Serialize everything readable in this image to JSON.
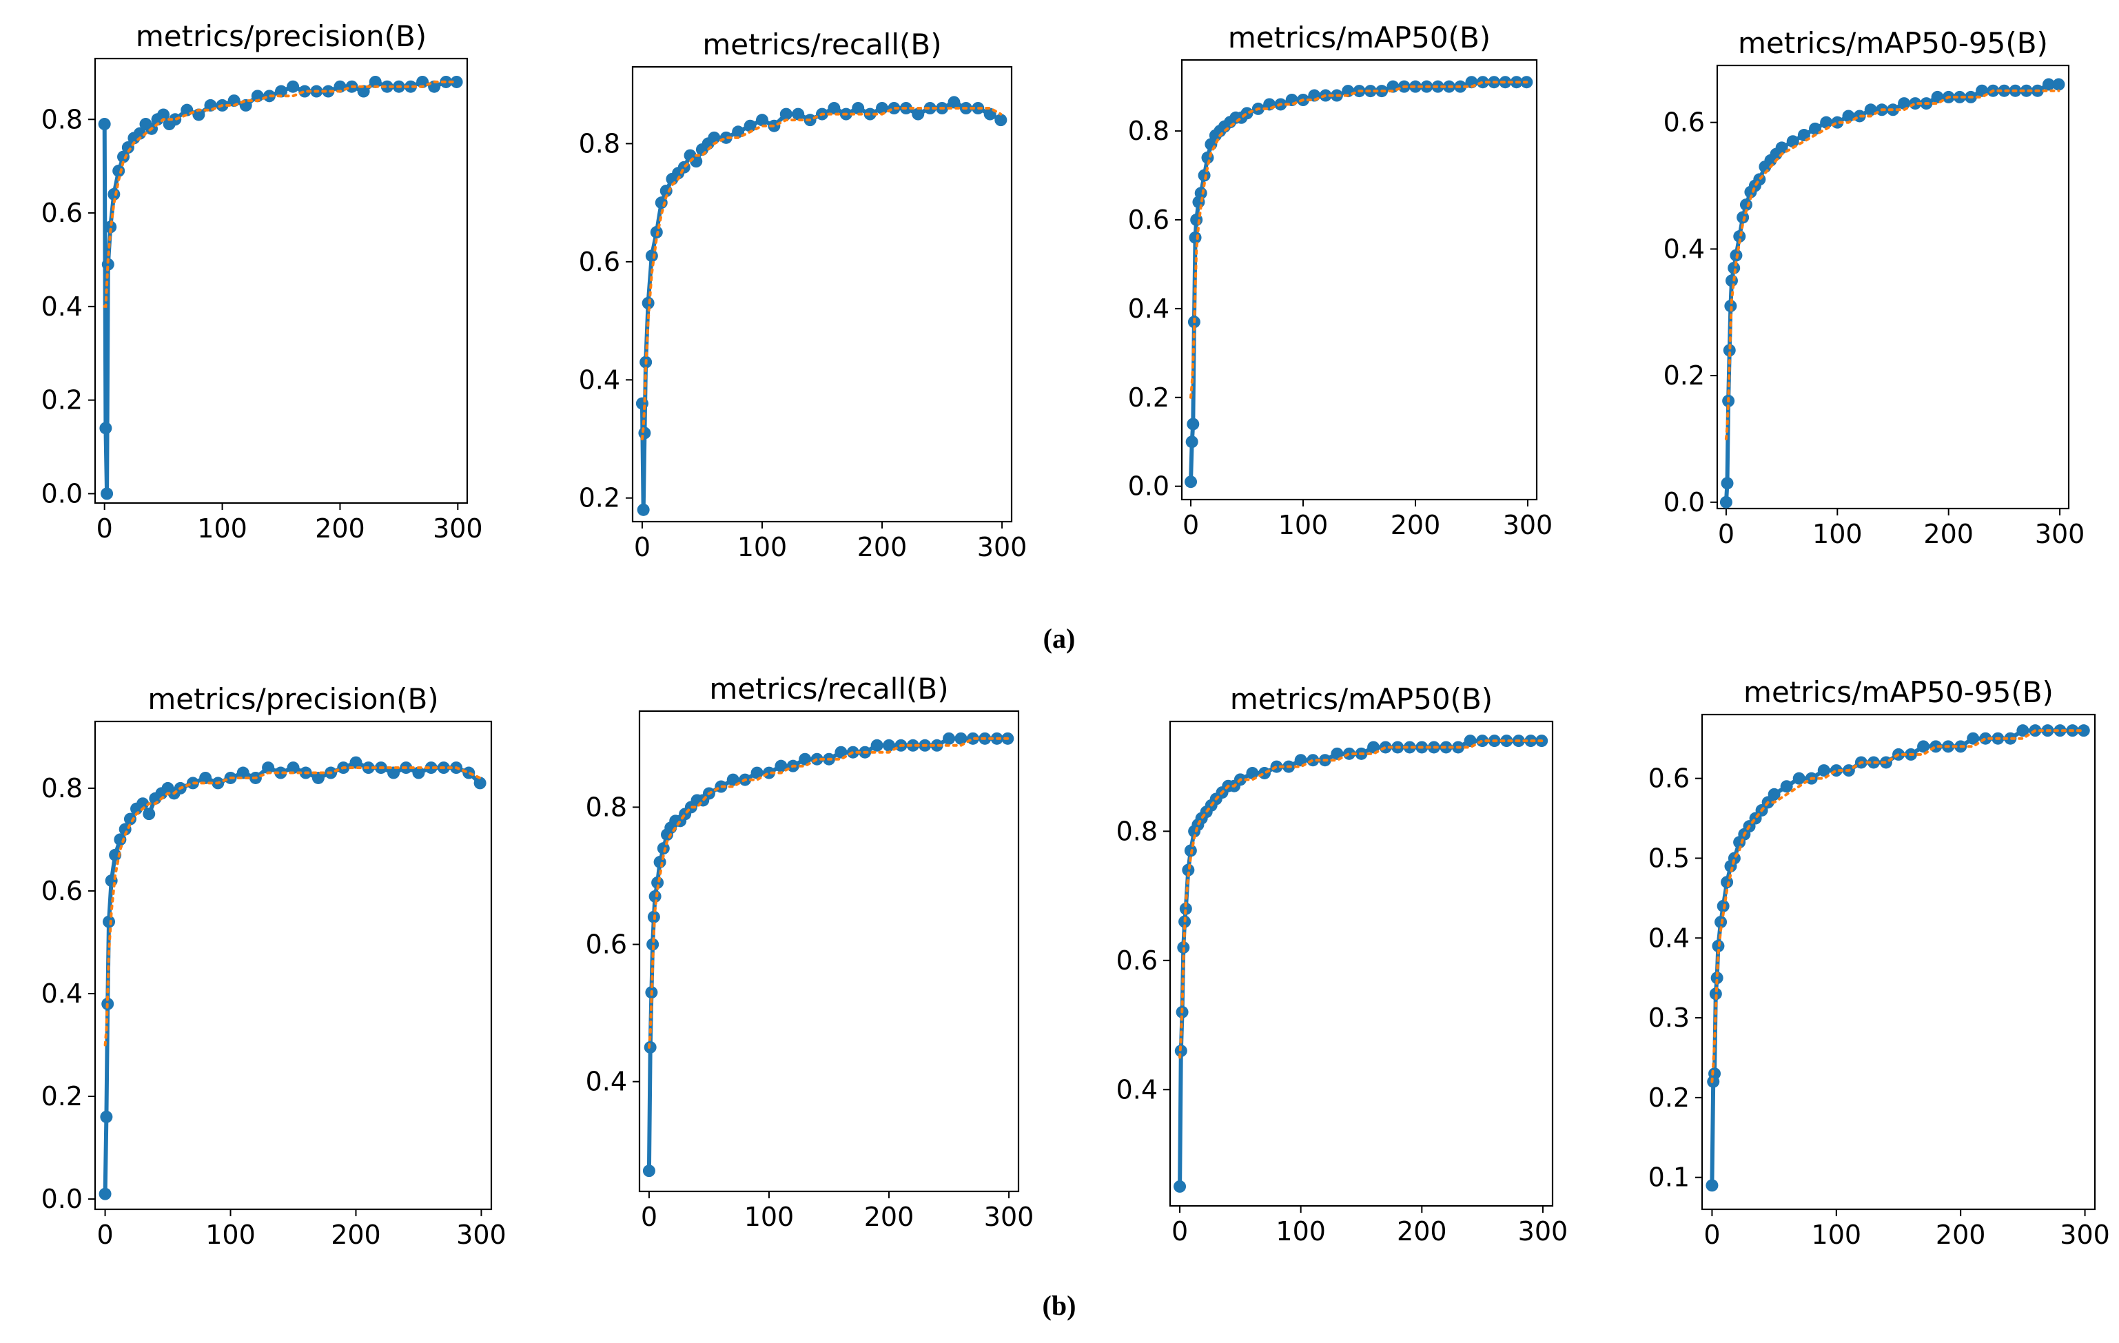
{
  "colors": {
    "series": "#1f77b4",
    "smooth": "#ff7f0e",
    "axis": "#000000"
  },
  "panel_labels": [
    "(a)",
    "(b)"
  ],
  "chart_data": [
    {
      "type": "line",
      "row": 0,
      "title": "metrics/precision(B)",
      "xlim": [
        -8,
        308
      ],
      "ylim": [
        -0.02,
        0.93
      ],
      "xticks": [
        0,
        100,
        200,
        300
      ],
      "xtick_labels": [
        "0",
        "100",
        "200",
        "300"
      ],
      "yticks": [
        0,
        0.2,
        0.4,
        0.6,
        0.8
      ],
      "ytick_labels": [
        "0.0",
        "0.2",
        "0.4",
        "0.6",
        "0.8"
      ],
      "x": [
        0,
        1,
        2,
        3,
        5,
        8,
        12,
        16,
        20,
        25,
        30,
        35,
        40,
        45,
        50,
        55,
        60,
        70,
        80,
        90,
        100,
        110,
        120,
        130,
        140,
        150,
        160,
        170,
        180,
        190,
        200,
        210,
        220,
        230,
        240,
        250,
        260,
        270,
        280,
        290,
        299
      ],
      "y": [
        0.79,
        0.14,
        0.0,
        0.49,
        0.57,
        0.64,
        0.69,
        0.72,
        0.74,
        0.76,
        0.77,
        0.79,
        0.78,
        0.8,
        0.81,
        0.79,
        0.8,
        0.82,
        0.81,
        0.83,
        0.83,
        0.84,
        0.83,
        0.85,
        0.85,
        0.86,
        0.87,
        0.86,
        0.86,
        0.86,
        0.87,
        0.87,
        0.86,
        0.88,
        0.87,
        0.87,
        0.87,
        0.88,
        0.87,
        0.88,
        0.88
      ],
      "smooth": [
        0.4,
        0.4,
        0.45,
        0.5,
        0.56,
        0.62,
        0.67,
        0.71,
        0.73,
        0.75,
        0.76,
        0.77,
        0.78,
        0.79,
        0.8,
        0.8,
        0.8,
        0.81,
        0.82,
        0.82,
        0.83,
        0.83,
        0.84,
        0.84,
        0.85,
        0.85,
        0.85,
        0.86,
        0.86,
        0.86,
        0.86,
        0.87,
        0.87,
        0.87,
        0.87,
        0.87,
        0.87,
        0.87,
        0.88,
        0.88,
        0.88
      ]
    },
    {
      "type": "line",
      "row": 0,
      "title": "metrics/recall(B)",
      "xlim": [
        -8,
        308
      ],
      "ylim": [
        0.16,
        0.93
      ],
      "xticks": [
        0,
        100,
        200,
        300
      ],
      "xtick_labels": [
        "0",
        "100",
        "200",
        "300"
      ],
      "yticks": [
        0.2,
        0.4,
        0.6,
        0.8
      ],
      "ytick_labels": [
        "0.2",
        "0.4",
        "0.6",
        "0.8"
      ],
      "x": [
        0,
        1,
        2,
        3,
        5,
        8,
        12,
        16,
        20,
        25,
        30,
        35,
        40,
        45,
        50,
        55,
        60,
        70,
        80,
        90,
        100,
        110,
        120,
        130,
        140,
        150,
        160,
        170,
        180,
        190,
        200,
        210,
        220,
        230,
        240,
        250,
        260,
        270,
        280,
        290,
        299
      ],
      "y": [
        0.36,
        0.18,
        0.31,
        0.43,
        0.53,
        0.61,
        0.65,
        0.7,
        0.72,
        0.74,
        0.75,
        0.76,
        0.78,
        0.77,
        0.79,
        0.8,
        0.81,
        0.81,
        0.82,
        0.83,
        0.84,
        0.83,
        0.85,
        0.85,
        0.84,
        0.85,
        0.86,
        0.85,
        0.86,
        0.85,
        0.86,
        0.86,
        0.86,
        0.85,
        0.86,
        0.86,
        0.87,
        0.86,
        0.86,
        0.85,
        0.84
      ],
      "smooth": [
        0.3,
        0.32,
        0.36,
        0.42,
        0.5,
        0.58,
        0.64,
        0.68,
        0.71,
        0.73,
        0.74,
        0.76,
        0.77,
        0.78,
        0.78,
        0.79,
        0.8,
        0.81,
        0.81,
        0.82,
        0.83,
        0.83,
        0.84,
        0.84,
        0.84,
        0.85,
        0.85,
        0.85,
        0.85,
        0.85,
        0.85,
        0.86,
        0.86,
        0.86,
        0.86,
        0.86,
        0.86,
        0.86,
        0.86,
        0.86,
        0.85
      ]
    },
    {
      "type": "line",
      "row": 0,
      "title": "metrics/mAP50(B)",
      "xlim": [
        -8,
        308
      ],
      "ylim": [
        -0.03,
        0.96
      ],
      "xticks": [
        0,
        100,
        200,
        300
      ],
      "xtick_labels": [
        "0",
        "100",
        "200",
        "300"
      ],
      "yticks": [
        0,
        0.2,
        0.4,
        0.6,
        0.8
      ],
      "ytick_labels": [
        "0.0",
        "0.2",
        "0.4",
        "0.6",
        "0.8"
      ],
      "x": [
        0,
        1,
        2,
        3,
        4,
        5,
        7,
        9,
        12,
        15,
        18,
        22,
        26,
        30,
        35,
        40,
        45,
        50,
        60,
        70,
        80,
        90,
        100,
        110,
        120,
        130,
        140,
        150,
        160,
        170,
        180,
        190,
        200,
        210,
        220,
        230,
        240,
        250,
        260,
        270,
        280,
        290,
        299
      ],
      "y": [
        0.01,
        0.1,
        0.14,
        0.37,
        0.56,
        0.6,
        0.64,
        0.66,
        0.7,
        0.74,
        0.77,
        0.79,
        0.8,
        0.81,
        0.82,
        0.83,
        0.83,
        0.84,
        0.85,
        0.86,
        0.86,
        0.87,
        0.87,
        0.88,
        0.88,
        0.88,
        0.89,
        0.89,
        0.89,
        0.89,
        0.9,
        0.9,
        0.9,
        0.9,
        0.9,
        0.9,
        0.9,
        0.91,
        0.91,
        0.91,
        0.91,
        0.91,
        0.91
      ],
      "smooth": [
        0.2,
        0.23,
        0.28,
        0.35,
        0.45,
        0.53,
        0.59,
        0.63,
        0.68,
        0.72,
        0.75,
        0.77,
        0.79,
        0.8,
        0.81,
        0.82,
        0.83,
        0.84,
        0.85,
        0.85,
        0.86,
        0.86,
        0.87,
        0.87,
        0.88,
        0.88,
        0.88,
        0.89,
        0.89,
        0.89,
        0.89,
        0.9,
        0.9,
        0.9,
        0.9,
        0.9,
        0.9,
        0.9,
        0.91,
        0.91,
        0.91,
        0.91,
        0.91
      ]
    },
    {
      "type": "line",
      "row": 0,
      "title": "metrics/mAP50-95(B)",
      "xlim": [
        -8,
        308
      ],
      "ylim": [
        -0.01,
        0.69
      ],
      "xticks": [
        0,
        100,
        200,
        300
      ],
      "xtick_labels": [
        "0",
        "100",
        "200",
        "300"
      ],
      "yticks": [
        0,
        0.2,
        0.4,
        0.6
      ],
      "ytick_labels": [
        "0.0",
        "0.2",
        "0.4",
        "0.6"
      ],
      "x": [
        0,
        1,
        2,
        3,
        4,
        5,
        7,
        9,
        12,
        15,
        18,
        22,
        26,
        30,
        35,
        40,
        45,
        50,
        60,
        70,
        80,
        90,
        100,
        110,
        120,
        130,
        140,
        150,
        160,
        170,
        180,
        190,
        200,
        210,
        220,
        230,
        240,
        250,
        260,
        270,
        280,
        290,
        299
      ],
      "y": [
        0.0,
        0.03,
        0.16,
        0.24,
        0.31,
        0.35,
        0.37,
        0.39,
        0.42,
        0.45,
        0.47,
        0.49,
        0.5,
        0.51,
        0.53,
        0.54,
        0.55,
        0.56,
        0.57,
        0.58,
        0.59,
        0.6,
        0.6,
        0.61,
        0.61,
        0.62,
        0.62,
        0.62,
        0.63,
        0.63,
        0.63,
        0.64,
        0.64,
        0.64,
        0.64,
        0.65,
        0.65,
        0.65,
        0.65,
        0.65,
        0.65,
        0.66,
        0.66
      ],
      "smooth": [
        0.1,
        0.12,
        0.16,
        0.22,
        0.28,
        0.32,
        0.35,
        0.38,
        0.41,
        0.44,
        0.46,
        0.48,
        0.5,
        0.51,
        0.52,
        0.53,
        0.54,
        0.55,
        0.56,
        0.57,
        0.58,
        0.59,
        0.6,
        0.6,
        0.61,
        0.61,
        0.62,
        0.62,
        0.62,
        0.63,
        0.63,
        0.63,
        0.64,
        0.64,
        0.64,
        0.64,
        0.65,
        0.65,
        0.65,
        0.65,
        0.65,
        0.65,
        0.65
      ]
    },
    {
      "type": "line",
      "row": 1,
      "title": "metrics/precision(B)",
      "xlim": [
        -8,
        308
      ],
      "ylim": [
        -0.02,
        0.93
      ],
      "xticks": [
        0,
        100,
        200,
        300
      ],
      "xtick_labels": [
        "0",
        "100",
        "200",
        "300"
      ],
      "yticks": [
        0,
        0.2,
        0.4,
        0.6,
        0.8
      ],
      "ytick_labels": [
        "0.0",
        "0.2",
        "0.4",
        "0.6",
        "0.8"
      ],
      "x": [
        0,
        1,
        2,
        3,
        5,
        8,
        12,
        16,
        20,
        25,
        30,
        35,
        40,
        45,
        50,
        55,
        60,
        70,
        80,
        90,
        100,
        110,
        120,
        130,
        140,
        150,
        160,
        170,
        180,
        190,
        200,
        210,
        220,
        230,
        240,
        250,
        260,
        270,
        280,
        290,
        299
      ],
      "y": [
        0.01,
        0.16,
        0.38,
        0.54,
        0.62,
        0.67,
        0.7,
        0.72,
        0.74,
        0.76,
        0.77,
        0.75,
        0.78,
        0.79,
        0.8,
        0.79,
        0.8,
        0.81,
        0.82,
        0.81,
        0.82,
        0.83,
        0.82,
        0.84,
        0.83,
        0.84,
        0.83,
        0.82,
        0.83,
        0.84,
        0.85,
        0.84,
        0.84,
        0.83,
        0.84,
        0.83,
        0.84,
        0.84,
        0.84,
        0.83,
        0.81
      ],
      "smooth": [
        0.3,
        0.33,
        0.4,
        0.48,
        0.56,
        0.63,
        0.68,
        0.71,
        0.73,
        0.75,
        0.76,
        0.77,
        0.77,
        0.78,
        0.79,
        0.79,
        0.8,
        0.81,
        0.81,
        0.81,
        0.82,
        0.82,
        0.82,
        0.83,
        0.83,
        0.83,
        0.83,
        0.83,
        0.83,
        0.84,
        0.84,
        0.84,
        0.84,
        0.84,
        0.84,
        0.84,
        0.84,
        0.84,
        0.84,
        0.83,
        0.82
      ]
    },
    {
      "type": "line",
      "row": 1,
      "title": "metrics/recall(B)",
      "xlim": [
        -8,
        308
      ],
      "ylim": [
        0.24,
        0.94
      ],
      "xticks": [
        0,
        100,
        200,
        300
      ],
      "xtick_labels": [
        "0",
        "100",
        "200",
        "300"
      ],
      "yticks": [
        0.4,
        0.6,
        0.8
      ],
      "ytick_labels": [
        "0.4",
        "0.6",
        "0.8"
      ],
      "x": [
        0,
        1,
        2,
        3,
        4,
        5,
        7,
        9,
        12,
        15,
        18,
        22,
        26,
        30,
        35,
        40,
        45,
        50,
        60,
        70,
        80,
        90,
        100,
        110,
        120,
        130,
        140,
        150,
        160,
        170,
        180,
        190,
        200,
        210,
        220,
        230,
        240,
        250,
        260,
        270,
        280,
        290,
        299
      ],
      "y": [
        0.27,
        0.45,
        0.53,
        0.6,
        0.64,
        0.67,
        0.69,
        0.72,
        0.74,
        0.76,
        0.77,
        0.78,
        0.78,
        0.79,
        0.8,
        0.81,
        0.81,
        0.82,
        0.83,
        0.84,
        0.84,
        0.85,
        0.85,
        0.86,
        0.86,
        0.87,
        0.87,
        0.87,
        0.88,
        0.88,
        0.88,
        0.89,
        0.89,
        0.89,
        0.89,
        0.89,
        0.89,
        0.9,
        0.9,
        0.9,
        0.9,
        0.9,
        0.9
      ],
      "smooth": [
        0.45,
        0.47,
        0.52,
        0.57,
        0.62,
        0.65,
        0.68,
        0.7,
        0.73,
        0.75,
        0.76,
        0.77,
        0.78,
        0.79,
        0.8,
        0.8,
        0.81,
        0.82,
        0.83,
        0.83,
        0.84,
        0.84,
        0.85,
        0.85,
        0.86,
        0.86,
        0.87,
        0.87,
        0.87,
        0.88,
        0.88,
        0.88,
        0.88,
        0.89,
        0.89,
        0.89,
        0.89,
        0.89,
        0.89,
        0.9,
        0.9,
        0.9,
        0.9
      ]
    },
    {
      "type": "line",
      "row": 1,
      "title": "metrics/mAP50(B)",
      "xlim": [
        -8,
        308
      ],
      "ylim": [
        0.22,
        0.97
      ],
      "xticks": [
        0,
        100,
        200,
        300
      ],
      "xtick_labels": [
        "0",
        "100",
        "200",
        "300"
      ],
      "yticks": [
        0.4,
        0.6,
        0.8
      ],
      "ytick_labels": [
        "0.4",
        "0.6",
        "0.8"
      ],
      "x": [
        0,
        1,
        2,
        3,
        4,
        5,
        7,
        9,
        12,
        15,
        18,
        22,
        26,
        30,
        35,
        40,
        45,
        50,
        60,
        70,
        80,
        90,
        100,
        110,
        120,
        130,
        140,
        150,
        160,
        170,
        180,
        190,
        200,
        210,
        220,
        230,
        240,
        250,
        260,
        270,
        280,
        290,
        299
      ],
      "y": [
        0.25,
        0.46,
        0.52,
        0.62,
        0.66,
        0.68,
        0.74,
        0.77,
        0.8,
        0.81,
        0.82,
        0.83,
        0.84,
        0.85,
        0.86,
        0.87,
        0.87,
        0.88,
        0.89,
        0.89,
        0.9,
        0.9,
        0.91,
        0.91,
        0.91,
        0.92,
        0.92,
        0.92,
        0.93,
        0.93,
        0.93,
        0.93,
        0.93,
        0.93,
        0.93,
        0.93,
        0.94,
        0.94,
        0.94,
        0.94,
        0.94,
        0.94,
        0.94
      ],
      "smooth": [
        0.45,
        0.48,
        0.53,
        0.6,
        0.65,
        0.69,
        0.73,
        0.76,
        0.79,
        0.81,
        0.82,
        0.83,
        0.84,
        0.85,
        0.86,
        0.87,
        0.87,
        0.88,
        0.88,
        0.89,
        0.9,
        0.9,
        0.9,
        0.91,
        0.91,
        0.91,
        0.92,
        0.92,
        0.92,
        0.93,
        0.93,
        0.93,
        0.93,
        0.93,
        0.93,
        0.93,
        0.93,
        0.94,
        0.94,
        0.94,
        0.94,
        0.94,
        0.94
      ]
    },
    {
      "type": "line",
      "row": 1,
      "title": "metrics/mAP50-95(B)",
      "xlim": [
        -8,
        308
      ],
      "ylim": [
        0.06,
        0.68
      ],
      "xticks": [
        0,
        100,
        200,
        300
      ],
      "xtick_labels": [
        "0",
        "100",
        "200",
        "300"
      ],
      "yticks": [
        0.1,
        0.2,
        0.3,
        0.4,
        0.5,
        0.6
      ],
      "ytick_labels": [
        "0.1",
        "0.2",
        "0.3",
        "0.4",
        "0.5",
        "0.6"
      ],
      "x": [
        0,
        1,
        2,
        3,
        4,
        5,
        7,
        9,
        12,
        15,
        18,
        22,
        26,
        30,
        35,
        40,
        45,
        50,
        60,
        70,
        80,
        90,
        100,
        110,
        120,
        130,
        140,
        150,
        160,
        170,
        180,
        190,
        200,
        210,
        220,
        230,
        240,
        250,
        260,
        270,
        280,
        290,
        299
      ],
      "y": [
        0.09,
        0.22,
        0.23,
        0.33,
        0.35,
        0.39,
        0.42,
        0.44,
        0.47,
        0.49,
        0.5,
        0.52,
        0.53,
        0.54,
        0.55,
        0.56,
        0.57,
        0.58,
        0.59,
        0.6,
        0.6,
        0.61,
        0.61,
        0.61,
        0.62,
        0.62,
        0.62,
        0.63,
        0.63,
        0.64,
        0.64,
        0.64,
        0.64,
        0.65,
        0.65,
        0.65,
        0.65,
        0.66,
        0.66,
        0.66,
        0.66,
        0.66,
        0.66
      ],
      "smooth": [
        0.22,
        0.24,
        0.27,
        0.31,
        0.35,
        0.38,
        0.41,
        0.43,
        0.46,
        0.48,
        0.5,
        0.51,
        0.53,
        0.54,
        0.55,
        0.56,
        0.57,
        0.57,
        0.58,
        0.59,
        0.6,
        0.6,
        0.61,
        0.61,
        0.62,
        0.62,
        0.62,
        0.63,
        0.63,
        0.63,
        0.64,
        0.64,
        0.64,
        0.64,
        0.65,
        0.65,
        0.65,
        0.65,
        0.66,
        0.66,
        0.66,
        0.66,
        0.66
      ]
    }
  ]
}
